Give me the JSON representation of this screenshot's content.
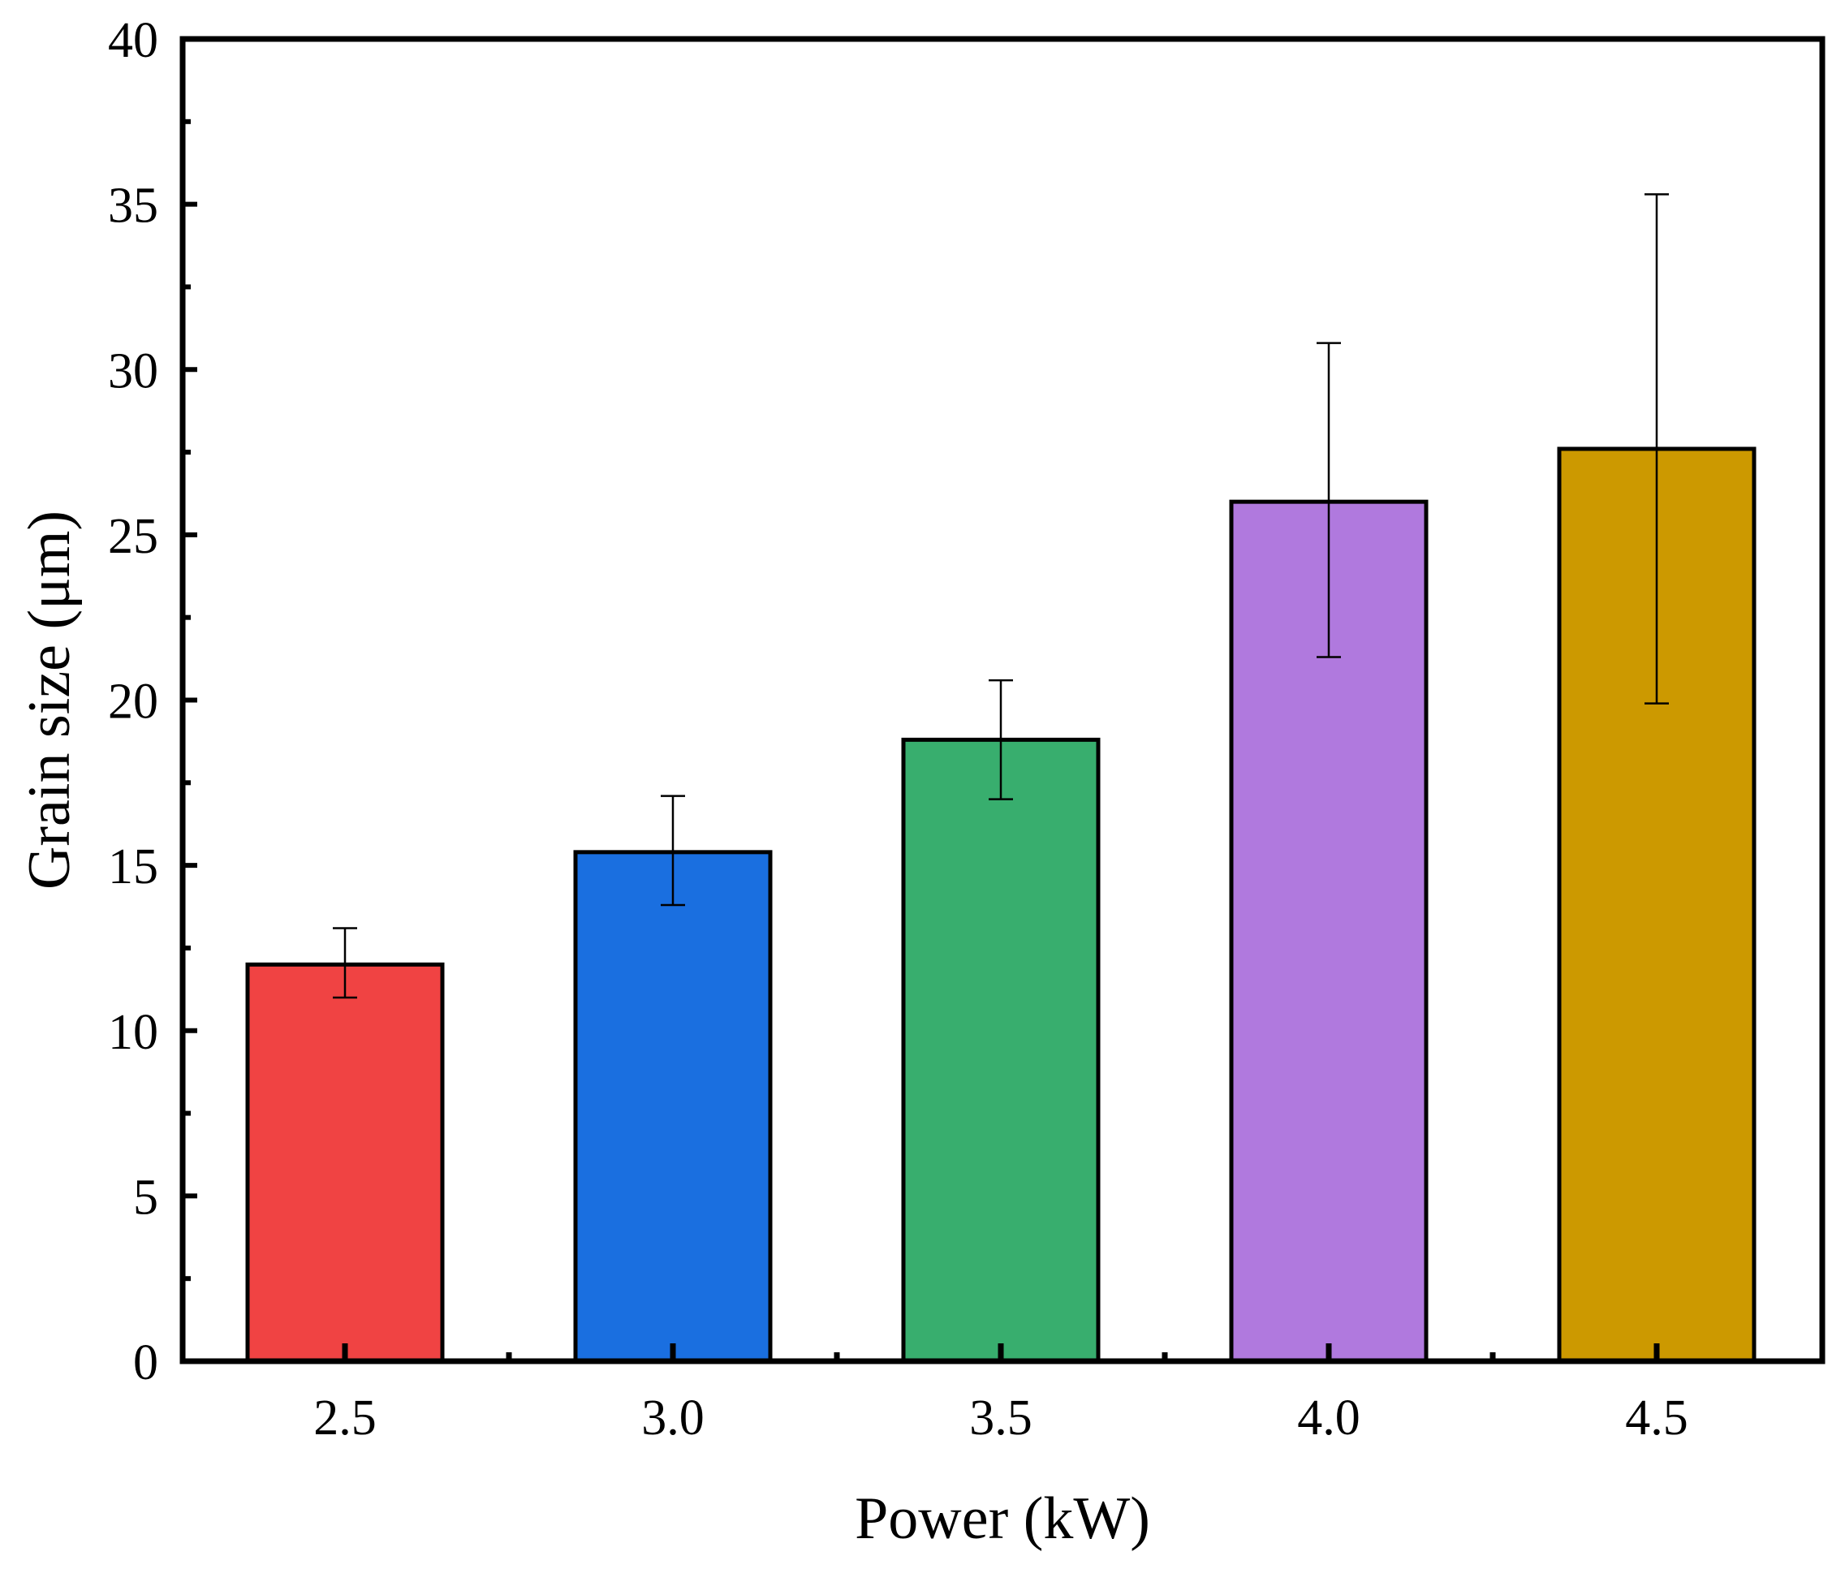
{
  "chart_data": {
    "type": "bar",
    "title": "",
    "xlabel": "Power (kW)",
    "ylabel": "Grain size (μm)",
    "categories": [
      "2.5",
      "3.0",
      "3.5",
      "4.0",
      "4.5"
    ],
    "values": [
      12.0,
      15.4,
      18.8,
      26.0,
      27.6
    ],
    "error_upper": [
      13.1,
      17.1,
      20.6,
      30.8,
      35.3
    ],
    "error_lower": [
      11.0,
      13.8,
      17.0,
      21.3,
      19.9
    ],
    "colors": [
      "#f04343",
      "#1a6fe0",
      "#38ae6e",
      "#b079de",
      "#cc9900"
    ],
    "ylim": [
      0,
      40
    ],
    "yticks": [
      "0",
      "5",
      "10",
      "15",
      "20",
      "25",
      "30",
      "35",
      "40"
    ],
    "grid": false,
    "legend": "none"
  }
}
